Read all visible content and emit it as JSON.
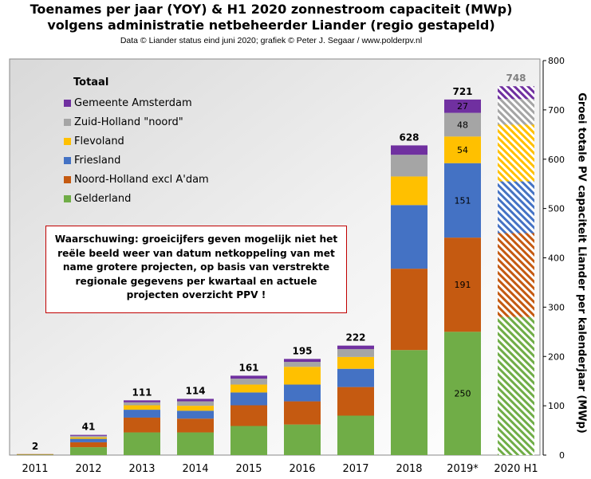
{
  "title": {
    "line1": "Toenames per jaar (YOY) & H1 2020 zonnestroom capaciteit (MWp)",
    "line2": "volgens administratie  netbeheerder Liander (regio gestapeld)",
    "source": "Data © Liander status eind juni 2020; grafiek © Peter J. Segaar / www.polderpv.nl"
  },
  "warning": "Waarschuwing:  groeicijfers geven mogelijk niet het reële beeld weer van datum netkoppeling van met name grotere projecten, op basis van verstrekte regionale gegevens per kwartaal  en actuele projecten overzicht PPV !",
  "legend_title": "Totaal",
  "colors": {
    "Gelderland": "#70ad47",
    "Noord-Holland excl A'dam": "#c55a11",
    "Friesland": "#4472c4",
    "Flevoland": "#ffc000",
    "Zuid-Holland \"noord\"": "#a5a5a5",
    "Gemeente Amsterdam": "#7030a0"
  },
  "chart_data": {
    "type": "bar",
    "stacked": true,
    "categories": [
      "2011",
      "2012",
      "2013",
      "2014",
      "2015",
      "2016",
      "2017",
      "2018",
      "2019*",
      "2020 H1"
    ],
    "series": [
      {
        "name": "Gelderland",
        "values": [
          1,
          16,
          46,
          46,
          59,
          62,
          80,
          213,
          250,
          280
        ]
      },
      {
        "name": "Noord-Holland excl A'dam",
        "values": [
          1,
          10,
          30,
          28,
          42,
          47,
          58,
          165,
          191,
          170
        ]
      },
      {
        "name": "Friesland",
        "values": [
          0,
          7,
          16,
          16,
          26,
          34,
          37,
          129,
          151,
          105
        ]
      },
      {
        "name": "Flevoland",
        "values": [
          0,
          3,
          9,
          10,
          16,
          36,
          24,
          58,
          54,
          115
        ]
      },
      {
        "name": "Zuid-Holland \"noord\"",
        "values": [
          0,
          3,
          6,
          9,
          12,
          10,
          16,
          44,
          48,
          52
        ]
      },
      {
        "name": "Gemeente Amsterdam",
        "values": [
          0,
          2,
          4,
          5,
          6,
          6,
          7,
          19,
          27,
          26
        ]
      }
    ],
    "totals": [
      "2",
      "41",
      "111",
      "114",
      "161",
      "195",
      "222",
      "628",
      "721",
      "748"
    ],
    "segment_labels_2019": {
      "Gelderland": "250",
      "Noord-Holland excl A'dam": "191",
      "Friesland": "151",
      "Flevoland": "54",
      "Zuid-Holland \"noord\"": "48",
      "Gemeente Amsterdam": "27"
    },
    "ylabel": "Groei totale PV capaciteit Liander per kalenderjaar  (MWp)",
    "ylim": [
      0,
      800
    ],
    "yticks": [
      "0",
      "100",
      "200",
      "300",
      "400",
      "500",
      "600",
      "700",
      "800"
    ],
    "hatched_category": "2020 H1",
    "grid": false
  }
}
